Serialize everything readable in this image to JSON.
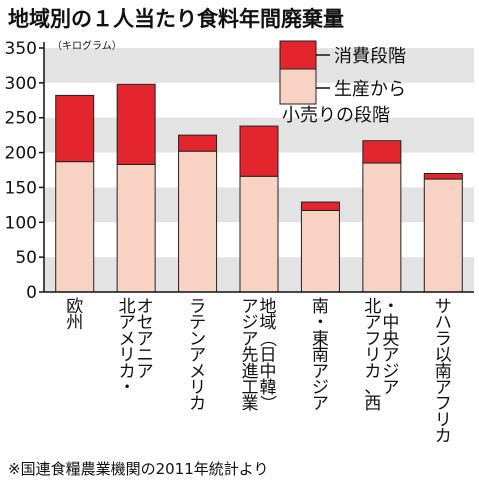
{
  "title": "地域別の１人当たり食料年間廃棄量",
  "unit": "（キログラム）",
  "footnote": "※国連食糧農業機関の2011年統計より",
  "chart_data": {
    "type": "bar",
    "stacked": true,
    "categories": [
      "欧州",
      "北アメリカ・オセアニア",
      "ラテンアメリカ",
      "アジア先進工業地域（日中韓）",
      "南・東南アジア",
      "北アフリカ、西・中央アジア",
      "サハラ以南アフリカ"
    ],
    "series": [
      {
        "name": "生産から小売りの段階",
        "color": "#f8d2c2",
        "values": [
          187,
          183,
          202,
          166,
          117,
          185,
          162
        ]
      },
      {
        "name": "消費段階",
        "color": "#e3262e",
        "values": [
          95,
          115,
          23,
          72,
          12,
          32,
          8
        ]
      }
    ],
    "ylim": [
      0,
      350
    ],
    "yticks": [
      0,
      50,
      100,
      150,
      200,
      250,
      300,
      350
    ],
    "grid": "alternating horizontal bands",
    "legend_position": "top-right"
  }
}
